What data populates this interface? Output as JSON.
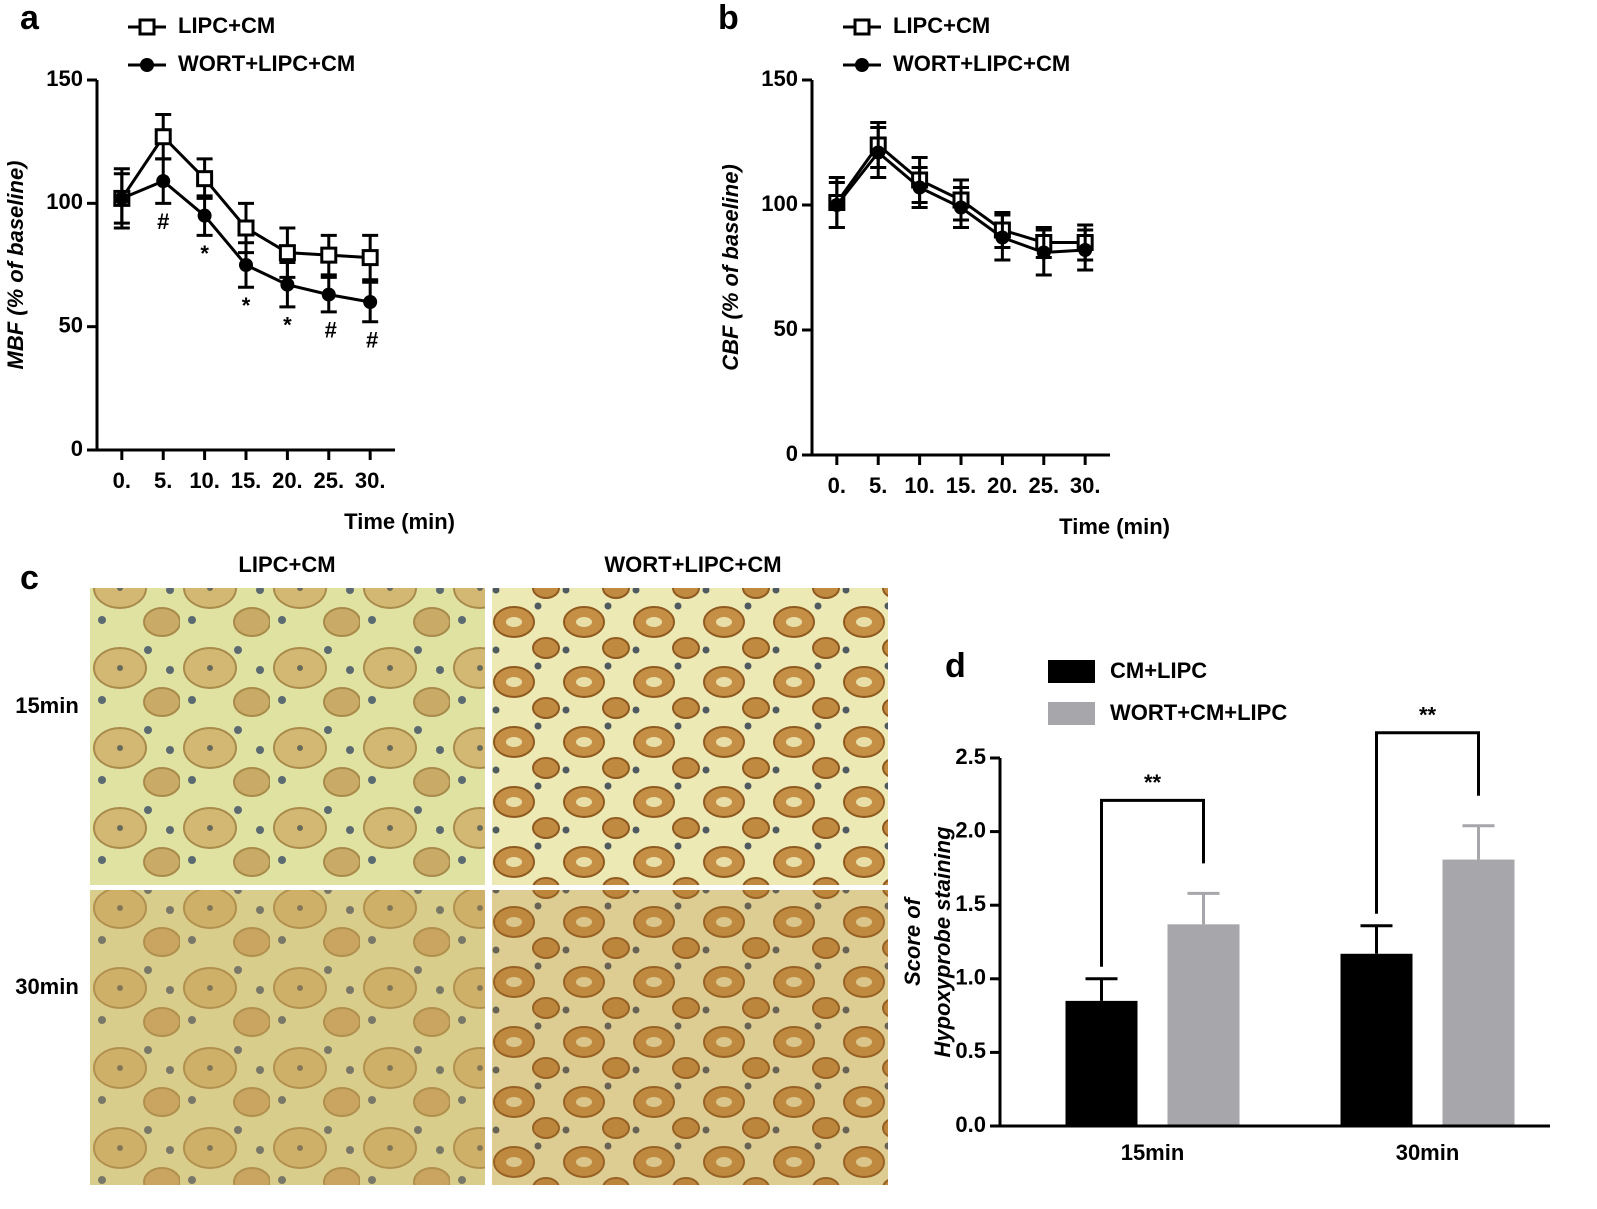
{
  "chart_data": [
    {
      "type": "line",
      "panel": "a",
      "ylabel": "MBF (% of baseline)",
      "xlabel": "Time (min)",
      "x": [
        0,
        5,
        10,
        15,
        20,
        25,
        30
      ],
      "xlim": [
        -3,
        33
      ],
      "xticks": [
        {
          "value": 0,
          "label": "0."
        },
        {
          "value": 5,
          "label": "5."
        },
        {
          "value": 10,
          "label": "10."
        },
        {
          "value": 15,
          "label": "15."
        },
        {
          "value": 20,
          "label": "20."
        },
        {
          "value": 25,
          "label": "25."
        },
        {
          "value": 30,
          "label": "30."
        }
      ],
      "ylim": [
        0,
        150
      ],
      "yticks": [
        0,
        50,
        100,
        150
      ],
      "legend": "top",
      "series": [
        {
          "name": "LIPC+CM",
          "color": "#000000",
          "marker": "square-open",
          "values": [
            102,
            127,
            110,
            90,
            80,
            79,
            78
          ],
          "errors": [
            12,
            9,
            8,
            10,
            10,
            8,
            9
          ]
        },
        {
          "name": "WORT+LIPC+CM",
          "color": "#000000",
          "marker": "circle",
          "values": [
            102,
            109,
            95,
            75,
            67,
            63,
            60
          ],
          "errors": [
            10,
            9,
            8,
            9,
            9,
            7,
            8
          ]
        }
      ],
      "significance": [
        null,
        "#",
        "*",
        "*",
        "*",
        "#",
        "#"
      ]
    },
    {
      "type": "line",
      "panel": "b",
      "ylabel": "CBF (% of baseline)",
      "xlabel": "Time (min)",
      "x": [
        0,
        5,
        10,
        15,
        20,
        25,
        30
      ],
      "xlim": [
        -3,
        33
      ],
      "xticks": [
        {
          "value": 0,
          "label": "0."
        },
        {
          "value": 5,
          "label": "5."
        },
        {
          "value": 10,
          "label": "10."
        },
        {
          "value": 15,
          "label": "15."
        },
        {
          "value": 20,
          "label": "20."
        },
        {
          "value": 25,
          "label": "25."
        },
        {
          "value": 30,
          "label": "30."
        }
      ],
      "ylim": [
        0,
        150
      ],
      "yticks": [
        0,
        50,
        100,
        150
      ],
      "legend": "top",
      "series": [
        {
          "name": "LIPC+CM",
          "color": "#000000",
          "marker": "square-open",
          "values": [
            101,
            124,
            110,
            102,
            90,
            85,
            85
          ],
          "errors": [
            10,
            9,
            9,
            8,
            7,
            6,
            7
          ]
        },
        {
          "name": "WORT+LIPC+CM",
          "color": "#000000",
          "marker": "circle",
          "values": [
            100,
            121,
            107,
            99,
            87,
            81,
            82
          ],
          "errors": [
            9,
            10,
            8,
            8,
            9,
            9,
            8
          ]
        }
      ]
    },
    {
      "type": "bar",
      "panel": "d",
      "ylabel": [
        "Score of",
        "Hypoxyprobe staining"
      ],
      "categories": [
        "15min",
        "30min"
      ],
      "ylim": [
        0,
        2.5
      ],
      "yticks": [
        {
          "value": 0,
          "label": "0.0"
        },
        0.5,
        {
          "value": 1,
          "label": "1.0"
        },
        1.5,
        {
          "value": 2,
          "label": "2.0"
        },
        2.5
      ],
      "legend": "top",
      "series": [
        {
          "name": "CM+LIPC",
          "color": "#000000",
          "values": [
            0.85,
            1.17
          ],
          "errors": [
            0.15,
            0.19
          ]
        },
        {
          "name": "WORT+CM+LIPC",
          "color": "#a6a6ab",
          "values": [
            1.37,
            1.81
          ],
          "errors": [
            0.21,
            0.23
          ]
        }
      ],
      "significance": [
        "**",
        "**"
      ]
    }
  ],
  "micrographs": {
    "panel": "c",
    "columns": [
      "LIPC+CM",
      "WORT+LIPC+CM"
    ],
    "rows": [
      "15min",
      "30min"
    ]
  }
}
